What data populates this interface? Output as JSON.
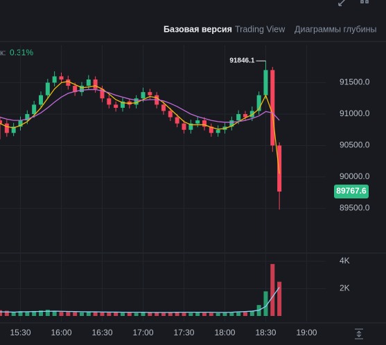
{
  "tabs": [
    "Базовая версия",
    "Trading View",
    "Диаграммы глубины"
  ],
  "change_label": "к:",
  "change_value": "0.31%",
  "chart_data": {
    "type": "candlestick",
    "x": [
      "15:15",
      "15:20",
      "15:25",
      "15:30",
      "15:35",
      "15:40",
      "15:45",
      "15:50",
      "15:55",
      "16:00",
      "16:05",
      "16:10",
      "16:15",
      "16:20",
      "16:25",
      "16:30",
      "16:35",
      "16:40",
      "16:45",
      "16:50",
      "16:55",
      "17:00",
      "17:05",
      "17:10",
      "17:15",
      "17:20",
      "17:25",
      "17:30",
      "17:35",
      "17:40",
      "17:45",
      "17:50",
      "17:55",
      "18:00",
      "18:05",
      "18:10",
      "18:15",
      "18:20",
      "18:25",
      "18:30",
      "18:35",
      "18:40"
    ],
    "open": [
      90900,
      90850,
      90700,
      90800,
      90900,
      91000,
      91150,
      91300,
      91500,
      91600,
      91550,
      91450,
      91350,
      91450,
      91550,
      91400,
      91250,
      91150,
      91100,
      91200,
      91150,
      91250,
      91350,
      91300,
      91150,
      91050,
      90950,
      90850,
      90750,
      90850,
      90900,
      90800,
      90700,
      90750,
      90800,
      90900,
      91000,
      90950,
      91050,
      91300,
      91700,
      90500
    ],
    "high": [
      90960,
      90910,
      90860,
      90960,
      91060,
      91210,
      91360,
      91560,
      91680,
      91660,
      91610,
      91500,
      91510,
      91620,
      91600,
      91450,
      91310,
      91200,
      91260,
      91240,
      91300,
      91420,
      91400,
      91350,
      91200,
      91100,
      91000,
      90900,
      90910,
      90960,
      90950,
      90850,
      90820,
      90860,
      90960,
      91060,
      91050,
      91120,
      91360,
      91846.1,
      91750,
      90550
    ],
    "low": [
      90600,
      90640,
      90650,
      90740,
      90840,
      90940,
      91090,
      91240,
      91440,
      91490,
      91390,
      91290,
      91290,
      91390,
      91340,
      91190,
      91090,
      91040,
      91040,
      91090,
      91090,
      91190,
      91240,
      91090,
      90990,
      90890,
      90790,
      90690,
      90690,
      90790,
      90740,
      90640,
      90640,
      90690,
      90740,
      90840,
      90890,
      90890,
      90990,
      91240,
      90400,
      89480
    ],
    "close": [
      90850,
      90700,
      90800,
      90900,
      91000,
      91150,
      91300,
      91500,
      91600,
      91550,
      91450,
      91350,
      91450,
      91550,
      91400,
      91250,
      91150,
      91100,
      91200,
      91150,
      91250,
      91350,
      91300,
      91150,
      91050,
      90950,
      90850,
      90750,
      90850,
      90900,
      90800,
      90700,
      90750,
      90800,
      90900,
      91000,
      90950,
      91050,
      91300,
      91700,
      90500,
      89767.6
    ],
    "volume": [
      420,
      380,
      300,
      350,
      330,
      360,
      400,
      450,
      380,
      300,
      320,
      280,
      260,
      300,
      280,
      260,
      240,
      250,
      230,
      240,
      220,
      260,
      240,
      230,
      220,
      240,
      250,
      230,
      220,
      240,
      230,
      220,
      210,
      220,
      240,
      260,
      280,
      350,
      800,
      1800,
      3800,
      2500
    ],
    "lines": [
      {
        "color": "#f0b90b",
        "values": [
          90850,
          90800,
          90780,
          90820,
          90880,
          90980,
          91100,
          91250,
          91400,
          91500,
          91520,
          91470,
          91420,
          91430,
          91450,
          91400,
          91320,
          91230,
          91180,
          91170,
          91180,
          91230,
          91280,
          91260,
          91180,
          91080,
          90980,
          90880,
          90830,
          90830,
          90830,
          90790,
          90760,
          90770,
          90810,
          90880,
          90940,
          90990,
          91080,
          91300,
          91000,
          90050
        ]
      },
      {
        "color": "#c26ad8",
        "values": [
          90950,
          90920,
          90900,
          90900,
          90920,
          90960,
          91020,
          91100,
          91190,
          91270,
          91330,
          91360,
          91380,
          91390,
          91390,
          91370,
          91340,
          91300,
          91270,
          91240,
          91220,
          91220,
          91230,
          91230,
          91210,
          91170,
          91120,
          91060,
          91000,
          90960,
          90930,
          90900,
          90880,
          90870,
          90870,
          90880,
          90900,
          90930,
          90970,
          91040,
          91020,
          90900
        ]
      }
    ],
    "volume_line": {
      "color": "#8fd3f4",
      "values": [
        300,
        290,
        280,
        300,
        310,
        320,
        330,
        340,
        350,
        340,
        330,
        320,
        310,
        300,
        300,
        290,
        280,
        280,
        270,
        270,
        270,
        270,
        260,
        260,
        260,
        260,
        270,
        270,
        270,
        270,
        270,
        270,
        260,
        260,
        270,
        300,
        320,
        350,
        420,
        700,
        1400,
        2100
      ]
    },
    "up_color": "#2ebd85",
    "down_color": "#f6465d",
    "xlim": [
      "15:15",
      "19:14"
    ],
    "xticks": [
      "15:30",
      "16:00",
      "16:30",
      "17:00",
      "17:30",
      "18:00",
      "18:30",
      "19:00"
    ],
    "ylim": [
      88800,
      92100
    ],
    "yticks": [
      {
        "value": 89500,
        "label": "89500.0"
      },
      {
        "value": 90000,
        "label": "90000.0"
      },
      {
        "value": 90500,
        "label": "90500.0"
      },
      {
        "value": 91000,
        "label": "91000.0"
      },
      {
        "value": 91500,
        "label": "91500.0"
      }
    ],
    "volume_ylim": [
      0,
      4500
    ],
    "volume_yticks": [
      {
        "value": 2000,
        "label": "2K"
      },
      {
        "value": 4000,
        "label": "4K"
      }
    ],
    "high_label": "91846.1",
    "last_price": "89767.6",
    "grid": true
  }
}
